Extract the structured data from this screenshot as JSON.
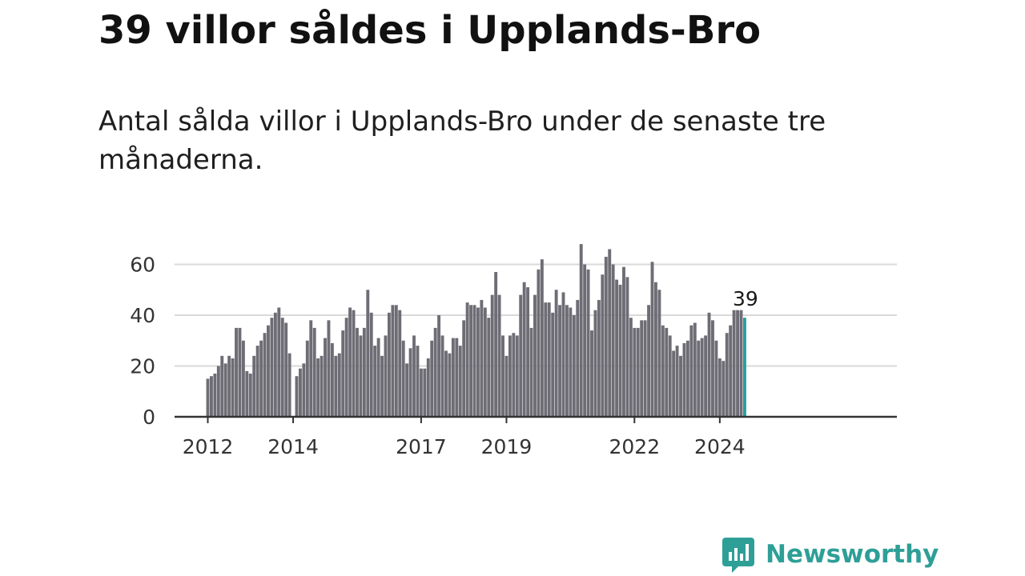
{
  "title": "39 villor såldes i Upplands-Bro",
  "subtitle": "Antal sålda villor i Upplands-Bro under de senaste tre månaderna.",
  "brand": {
    "name": "Newsworthy",
    "color": "#2e9f97"
  },
  "colors": {
    "bar": "#6e6d75",
    "highlight": "#24a19c",
    "grid": "#d9d9d9",
    "axis": "#333333"
  },
  "chart_data": {
    "type": "bar",
    "title": "",
    "xlabel": "",
    "ylabel": "",
    "ylim": [
      0,
      70
    ],
    "yticks": [
      0,
      20,
      40,
      60
    ],
    "grid": true,
    "x_start": "2012-01",
    "interval": "month",
    "xticks": [
      {
        "label": "2012",
        "index": 0
      },
      {
        "label": "2014",
        "index": 24
      },
      {
        "label": "2017",
        "index": 60
      },
      {
        "label": "2019",
        "index": 84
      },
      {
        "label": "2022",
        "index": 120
      },
      {
        "label": "2024",
        "index": 144
      }
    ],
    "values": [
      15,
      16,
      17,
      20,
      24,
      21,
      24,
      23,
      35,
      35,
      30,
      18,
      17,
      24,
      28,
      30,
      33,
      36,
      39,
      41,
      43,
      39,
      37,
      25,
      0,
      16,
      19,
      21,
      30,
      38,
      35,
      23,
      24,
      31,
      38,
      29,
      24,
      25,
      34,
      39,
      43,
      42,
      35,
      32,
      35,
      50,
      41,
      28,
      31,
      24,
      32,
      41,
      44,
      44,
      42,
      30,
      21,
      27,
      32,
      28,
      19,
      19,
      23,
      30,
      35,
      40,
      32,
      26,
      25,
      31,
      31,
      28,
      38,
      45,
      44,
      44,
      43,
      46,
      43,
      39,
      48,
      57,
      48,
      32,
      24,
      32,
      33,
      32,
      48,
      53,
      51,
      35,
      48,
      58,
      62,
      45,
      45,
      41,
      50,
      44,
      49,
      44,
      43,
      40,
      46,
      68,
      60,
      58,
      34,
      42,
      46,
      56,
      63,
      66,
      60,
      54,
      52,
      59,
      55,
      39,
      35,
      35,
      38,
      38,
      44,
      61,
      53,
      50,
      36,
      35,
      32,
      26,
      28,
      24,
      29,
      30,
      36,
      37,
      30,
      31,
      32,
      41,
      38,
      30,
      23,
      22,
      33,
      36,
      42,
      42,
      42,
      39
    ],
    "highlight_last": true,
    "last_value_label": "39"
  }
}
